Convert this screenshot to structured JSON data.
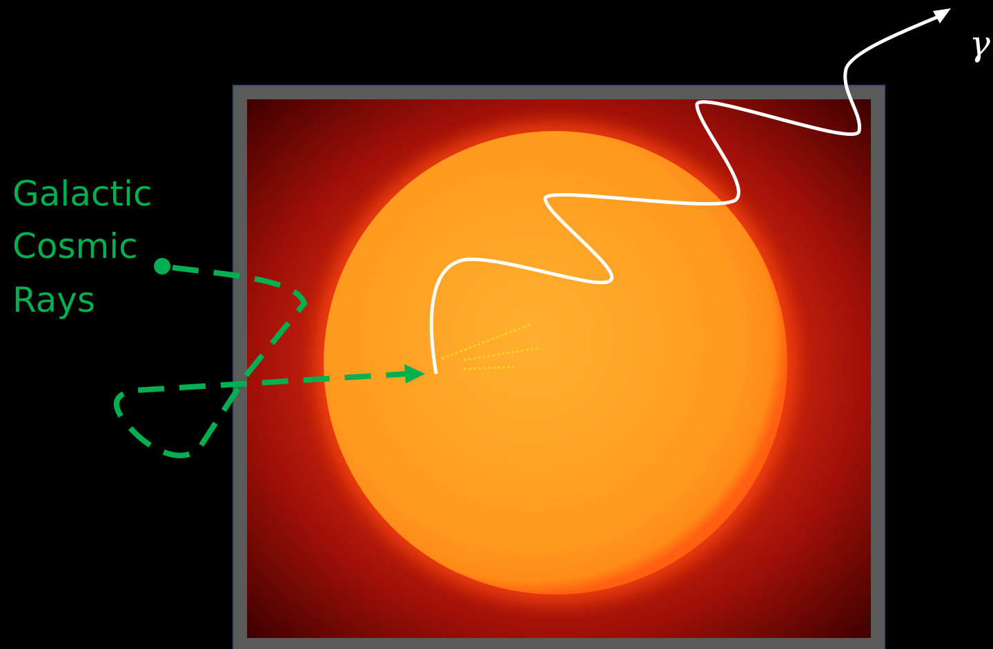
{
  "labels": {
    "cosmic_rays": {
      "lines": [
        "Galactic",
        "Cosmic",
        "Rays"
      ]
    },
    "gamma": "γ"
  }
}
